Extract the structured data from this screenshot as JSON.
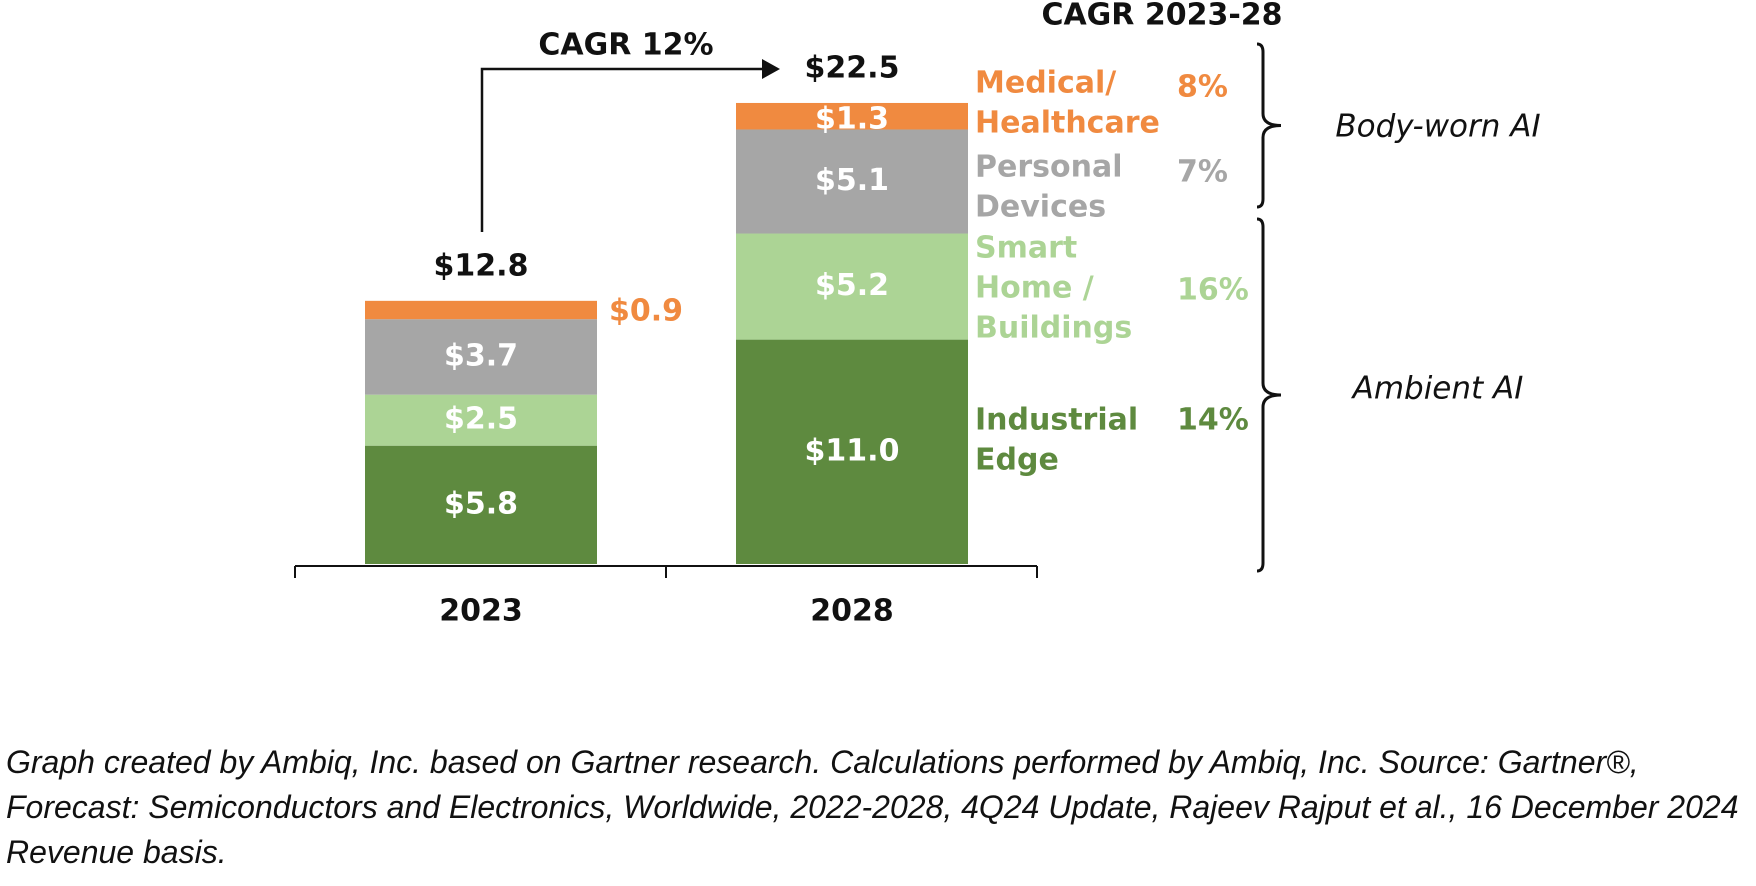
{
  "chart_data": {
    "type": "bar",
    "stacked": true,
    "categories": [
      "2023",
      "2028"
    ],
    "series": [
      {
        "name": "Industrial Edge",
        "label_lines": [
          "Industrial",
          "Edge"
        ],
        "values": [
          5.8,
          11.0
        ],
        "value_labels": [
          "$5.8",
          "$11.0"
        ],
        "cagr": "14%",
        "color": "#5e8a3f"
      },
      {
        "name": "Smart Home / Buildings",
        "label_lines": [
          "Smart",
          "Home /",
          "Buildings"
        ],
        "values": [
          2.5,
          5.2
        ],
        "value_labels": [
          "$2.5",
          "$5.2"
        ],
        "cagr": "16%",
        "color": "#acd495"
      },
      {
        "name": "Personal Devices",
        "label_lines": [
          "Personal",
          "Devices"
        ],
        "values": [
          3.7,
          5.1
        ],
        "value_labels": [
          "$3.7",
          "$5.1"
        ],
        "cagr": "7%",
        "color": "#a6a6a6"
      },
      {
        "name": "Medical/ Healthcare",
        "label_lines": [
          "Medical/",
          "Healthcare"
        ],
        "values": [
          0.9,
          1.3
        ],
        "value_labels": [
          "$0.9",
          "$1.3"
        ],
        "cagr": "8%",
        "color": "#f08a40"
      }
    ],
    "totals": [
      "$12.8",
      "$22.5"
    ],
    "cagr_arrow_label": "CAGR 12%",
    "cagr_column_header": "CAGR 2023-28",
    "groups": [
      {
        "name": "Body-worn AI",
        "members": [
          "Medical/ Healthcare",
          "Personal Devices"
        ]
      },
      {
        "name": "Ambient AI",
        "members": [
          "Smart Home / Buildings",
          "Industrial Edge"
        ]
      }
    ],
    "units": "USD billions",
    "value_label_color": "#ffffff",
    "text_color": "#111111"
  },
  "caption": "Graph created by Ambiq, Inc. based on Gartner research. Calculations performed by Ambiq, Inc. Source: Gartner®, Forecast: Semiconductors and Electronics, Worldwide, 2022-2028, 4Q24 Update, Rajeev Rajput et al., 16 December 2024 Revenue basis."
}
